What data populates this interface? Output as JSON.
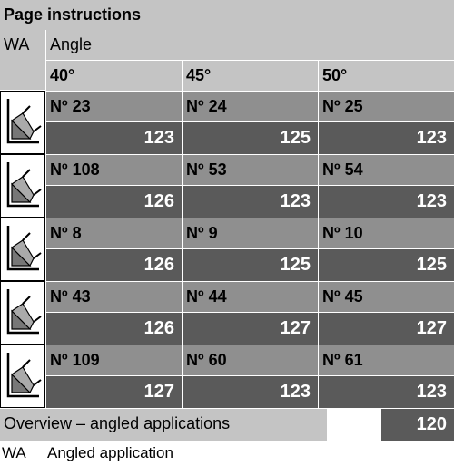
{
  "title": "Page instructions",
  "header": {
    "wa": "WA",
    "angle": "Angle"
  },
  "angles": [
    "40°",
    "45°",
    "50°"
  ],
  "rows": [
    {
      "top": [
        "Nº 23",
        "Nº 24",
        "Nº 25"
      ],
      "bot": [
        "123",
        "125",
        "123"
      ]
    },
    {
      "top": [
        "Nº 108",
        "Nº 53",
        "Nº 54"
      ],
      "bot": [
        "126",
        "123",
        "123"
      ]
    },
    {
      "top": [
        "Nº 8",
        "Nº 9",
        "Nº 10"
      ],
      "bot": [
        "126",
        "125",
        "125"
      ]
    },
    {
      "top": [
        "Nº 43",
        "Nº 44",
        "Nº 45"
      ],
      "bot": [
        "126",
        "127",
        "127"
      ]
    },
    {
      "top": [
        "Nº 109",
        "Nº 60",
        "Nº 61"
      ],
      "bot": [
        "127",
        "123",
        "123"
      ]
    }
  ],
  "overview": {
    "label": "Overview – angled applications",
    "num": "120"
  },
  "legend": {
    "abbr": "WA",
    "text": "Angled application"
  }
}
